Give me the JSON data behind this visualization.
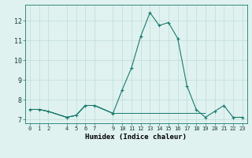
{
  "xlabel": "Humidex (Indice chaleur)",
  "x_values": [
    0,
    1,
    2,
    4,
    5,
    6,
    7,
    9,
    10,
    11,
    12,
    13,
    14,
    15,
    16,
    17,
    18,
    19,
    20,
    21,
    22,
    23
  ],
  "y_main": [
    7.5,
    7.5,
    7.4,
    7.1,
    7.2,
    7.7,
    7.7,
    7.3,
    8.5,
    9.6,
    11.2,
    12.4,
    11.75,
    11.9,
    11.1,
    8.7,
    7.5,
    7.1,
    7.4,
    7.7,
    7.1,
    7.1
  ],
  "y_line2": [
    7.5,
    7.5,
    7.4,
    7.1,
    7.2,
    7.7,
    7.7,
    7.3,
    7.3,
    7.3,
    7.3,
    7.3,
    7.3,
    7.3,
    7.3,
    7.3,
    7.3,
    7.3,
    null,
    null,
    null,
    null
  ],
  "y_line3": [
    7.5,
    7.5,
    7.4,
    7.1,
    7.2,
    7.7,
    7.7,
    7.3,
    7.3,
    7.3,
    7.3,
    7.3,
    7.3,
    7.3,
    7.3,
    null,
    null,
    null,
    null,
    null,
    null,
    null
  ],
  "line_color": "#1a7a6e",
  "bg_color": "#dff2f0",
  "grid_color": "#c0dcd8",
  "ylim": [
    6.8,
    12.8
  ],
  "yticks": [
    7,
    8,
    9,
    10,
    11,
    12
  ],
  "xticks": [
    0,
    1,
    2,
    4,
    5,
    6,
    7,
    9,
    10,
    11,
    12,
    13,
    14,
    15,
    16,
    17,
    18,
    19,
    20,
    21,
    22,
    23
  ],
  "xlim": [
    -0.5,
    23.5
  ]
}
